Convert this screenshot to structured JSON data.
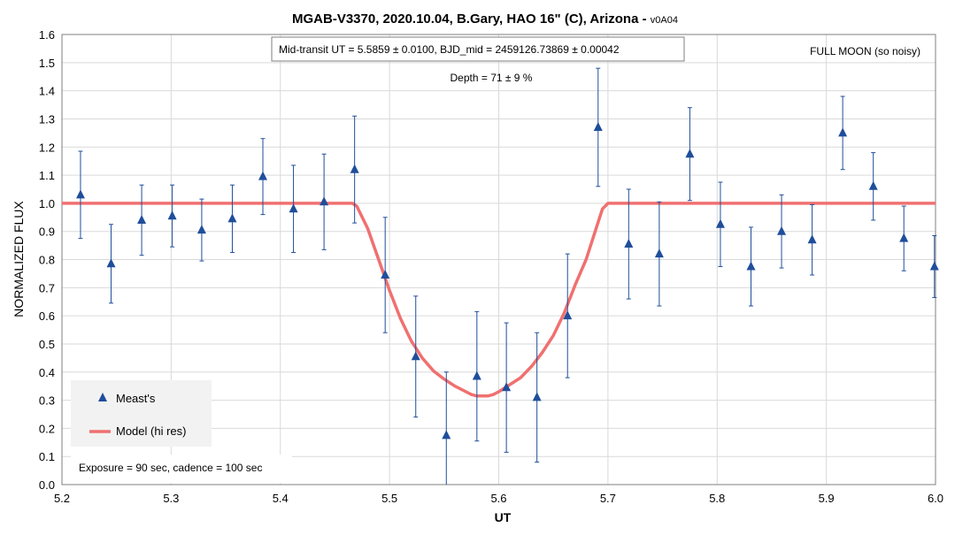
{
  "chart_data": {
    "type": "scatter",
    "title": "MGAB-V3370, 2020.10.04, B.Gary, HAO 16\" (C), Arizona - ",
    "title_version": "v0A04",
    "xlabel": "UT",
    "ylabel": "NORMALIZED FLUX",
    "xlim": [
      5.2,
      6.0
    ],
    "ylim": [
      0.0,
      1.6
    ],
    "x_ticks": [
      "5.2",
      "5.3",
      "5.4",
      "5.5",
      "5.6",
      "5.7",
      "5.8",
      "5.9",
      "6.0"
    ],
    "y_ticks": [
      "0.0",
      "0.1",
      "0.2",
      "0.3",
      "0.4",
      "0.5",
      "0.6",
      "0.7",
      "0.8",
      "0.9",
      "1.0",
      "1.1",
      "1.2",
      "1.3",
      "1.4",
      "1.5",
      "1.6"
    ],
    "grid": true,
    "legend_position": "bottom-left",
    "series": [
      {
        "name": "Meast's",
        "kind": "points_with_errorbars",
        "color": "#1f4e9b",
        "points": [
          {
            "x": 5.217,
            "y": 1.03,
            "err": 0.155
          },
          {
            "x": 5.245,
            "y": 0.785,
            "err": 0.14
          },
          {
            "x": 5.273,
            "y": 0.94,
            "err": 0.125
          },
          {
            "x": 5.301,
            "y": 0.955,
            "err": 0.11
          },
          {
            "x": 5.328,
            "y": 0.905,
            "err": 0.11
          },
          {
            "x": 5.356,
            "y": 0.945,
            "err": 0.12
          },
          {
            "x": 5.384,
            "y": 1.095,
            "err": 0.135
          },
          {
            "x": 5.412,
            "y": 0.98,
            "err": 0.155
          },
          {
            "x": 5.44,
            "y": 1.005,
            "err": 0.17
          },
          {
            "x": 5.468,
            "y": 1.12,
            "err": 0.19
          },
          {
            "x": 5.496,
            "y": 0.745,
            "err": 0.205
          },
          {
            "x": 5.524,
            "y": 0.455,
            "err": 0.215
          },
          {
            "x": 5.552,
            "y": 0.175,
            "err": 0.225
          },
          {
            "x": 5.58,
            "y": 0.385,
            "err": 0.23
          },
          {
            "x": 5.607,
            "y": 0.345,
            "err": 0.23
          },
          {
            "x": 5.635,
            "y": 0.31,
            "err": 0.23
          },
          {
            "x": 5.663,
            "y": 0.6,
            "err": 0.22
          },
          {
            "x": 5.691,
            "y": 1.27,
            "err": 0.21
          },
          {
            "x": 5.719,
            "y": 0.855,
            "err": 0.195
          },
          {
            "x": 5.747,
            "y": 0.82,
            "err": 0.185
          },
          {
            "x": 5.775,
            "y": 1.175,
            "err": 0.165
          },
          {
            "x": 5.803,
            "y": 0.925,
            "err": 0.15
          },
          {
            "x": 5.831,
            "y": 0.775,
            "err": 0.14
          },
          {
            "x": 5.859,
            "y": 0.9,
            "err": 0.13
          },
          {
            "x": 5.887,
            "y": 0.87,
            "err": 0.125
          },
          {
            "x": 5.915,
            "y": 1.25,
            "err": 0.13
          },
          {
            "x": 5.943,
            "y": 1.06,
            "err": 0.12
          },
          {
            "x": 5.971,
            "y": 0.875,
            "err": 0.115
          },
          {
            "x": 5.999,
            "y": 0.775,
            "err": 0.11
          }
        ]
      },
      {
        "name": "Model (hi res)",
        "kind": "line",
        "color": "#f07070",
        "x": [
          5.2,
          5.466,
          5.47,
          5.48,
          5.49,
          5.5,
          5.51,
          5.52,
          5.53,
          5.54,
          5.55,
          5.56,
          5.57,
          5.575,
          5.58,
          5.585,
          5.59,
          5.595,
          5.6,
          5.61,
          5.62,
          5.63,
          5.64,
          5.65,
          5.66,
          5.67,
          5.68,
          5.69,
          5.695,
          5.7,
          6.0
        ],
        "y": [
          1.0,
          1.0,
          0.99,
          0.91,
          0.8,
          0.69,
          0.59,
          0.51,
          0.45,
          0.405,
          0.375,
          0.35,
          0.33,
          0.32,
          0.315,
          0.315,
          0.315,
          0.32,
          0.33,
          0.355,
          0.38,
          0.42,
          0.47,
          0.53,
          0.61,
          0.71,
          0.8,
          0.92,
          0.98,
          1.0,
          1.0
        ]
      }
    ],
    "annotations": {
      "mid_transit": "Mid-transit UT = 5.5859 ± 0.0100, BJD_mid = 2459126.73869 ± 0.00042",
      "depth": "Depth = 71 ± 9 %",
      "moon": "FULL MOON (so noisy)",
      "exposure": "Exposure = 90 sec, cadence = 100 sec"
    }
  }
}
